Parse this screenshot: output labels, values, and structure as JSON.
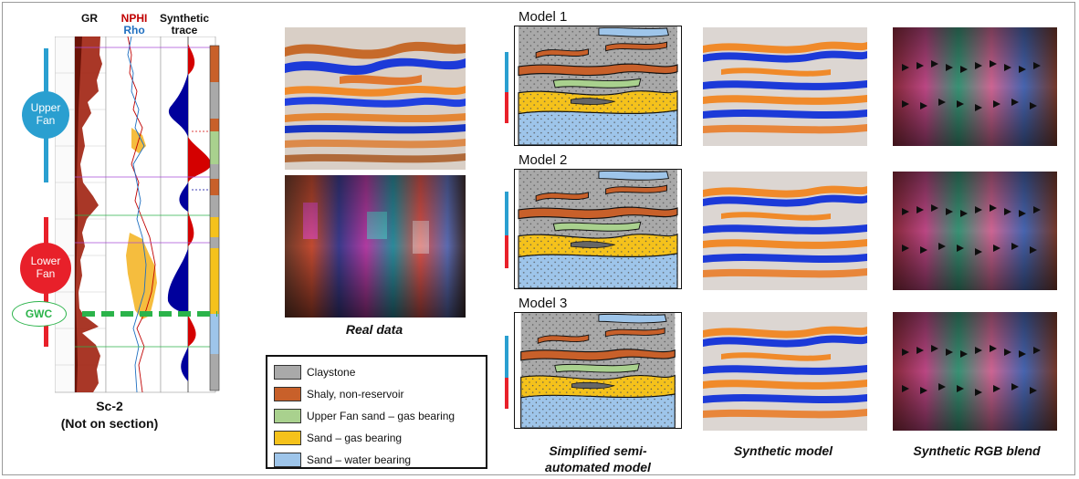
{
  "log_panel": {
    "gr_label": "GR",
    "nphi_label": "NPHI",
    "rho_label": "Rho",
    "synthetic_label_line1": "Synthetic",
    "synthetic_label_line2": "trace",
    "upper_fan_line1": "Upper",
    "upper_fan_line2": "Fan",
    "lower_fan_line1": "Lower",
    "lower_fan_line2": "Fan",
    "gwc_label": "GWC",
    "well_name": "Sc-2",
    "well_note": "(Not on section)",
    "colors": {
      "nphi": "#c00000",
      "rho": "#1f6fc0",
      "upper_fan": "#2a9fd0",
      "lower_fan": "#e8202a",
      "gwc": "#2bb34a"
    }
  },
  "real_data_caption": "Real data",
  "legend": {
    "items": [
      {
        "label": "Claystone",
        "color": "#a9a9a9"
      },
      {
        "label": "Shaly, non-reservoir",
        "color": "#c8602a"
      },
      {
        "label": "Upper Fan sand – gas bearing",
        "color": "#a9d18e"
      },
      {
        "label": "Sand – gas bearing",
        "color": "#f5c21b"
      },
      {
        "label": "Sand – water bearing",
        "color": "#9ec5ea"
      }
    ]
  },
  "models": [
    {
      "title": "Model 1"
    },
    {
      "title": "Model 2"
    },
    {
      "title": "Model 3"
    }
  ],
  "captions": {
    "simplified_line1": "Simplified semi-",
    "simplified_line2": "automated model",
    "synthetic_model": "Synthetic model",
    "synthetic_rgb": "Synthetic RGB blend"
  }
}
